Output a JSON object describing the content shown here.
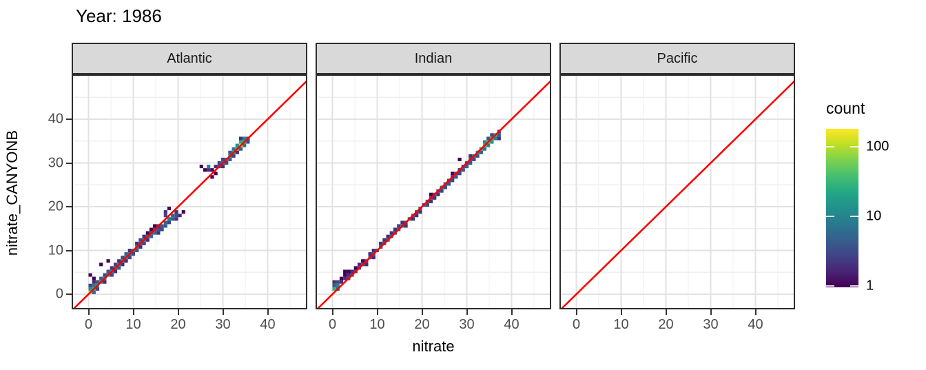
{
  "title": "Year: 1986",
  "axes": {
    "x": {
      "label": "nitrate",
      "tick_values": [
        0,
        10,
        20,
        30,
        40
      ],
      "tick_labels": [
        "0",
        "10",
        "20",
        "30",
        "40"
      ],
      "minor_values": [
        5,
        15,
        25,
        35,
        45
      ],
      "range": [
        -3.5,
        48.9
      ]
    },
    "y": {
      "label": "nitrate_CANYONB",
      "tick_values": [
        0,
        10,
        20,
        30,
        40
      ],
      "tick_labels": [
        "0",
        "10",
        "20",
        "30",
        "40"
      ],
      "minor_values": [
        5,
        15,
        25,
        35,
        45
      ],
      "range": [
        -3.5,
        50.2
      ]
    }
  },
  "legend": {
    "title": "count",
    "scale": "log10",
    "ticks": [
      {
        "value": 100,
        "label": "100"
      },
      {
        "value": 10,
        "label": "10"
      },
      {
        "value": 1,
        "label": "1"
      }
    ],
    "range": [
      1,
      180
    ],
    "gradient_stops": [
      [
        0.0,
        "#440154"
      ],
      [
        0.1,
        "#482475"
      ],
      [
        0.2,
        "#414487"
      ],
      [
        0.3,
        "#355f8d"
      ],
      [
        0.4,
        "#2a788e"
      ],
      [
        0.5,
        "#21918c"
      ],
      [
        0.6,
        "#22a884"
      ],
      [
        0.7,
        "#44bf70"
      ],
      [
        0.8,
        "#7ad151"
      ],
      [
        0.9,
        "#bddf26"
      ],
      [
        1.0,
        "#fde725"
      ]
    ]
  },
  "colors": {
    "identity_line": "#ff0000",
    "strip_fill": "#d9d9d9",
    "panel_border": "#2d2d2d",
    "grid_major": "#e2e2e2",
    "grid_minor": "#efefef",
    "axis_text": "#4d4d4d",
    "tick_mark": "#333333",
    "background": "#ffffff"
  },
  "chart_data": {
    "type": "heatmap",
    "subtype": "geom_bin2d_faceted_scatter",
    "title": "Year: 1986",
    "xlabel": "nitrate",
    "ylabel": "nitrate_CANYONB",
    "xlim": [
      -3.5,
      48.9
    ],
    "ylim": [
      -3.5,
      50.2
    ],
    "grid": true,
    "legend_position": "right",
    "identity_line": {
      "slope": 1,
      "intercept": 0,
      "color": "#ff0000"
    },
    "bin_size": 0.8,
    "count_scale": {
      "type": "log10",
      "legend_ticks": [
        1,
        10,
        100
      ]
    },
    "facets": [
      {
        "name": "Atlantic",
        "bins": [
          [
            0,
            0,
            120
          ],
          [
            0,
            0.8,
            15
          ],
          [
            0,
            1.6,
            3
          ],
          [
            0.8,
            0.8,
            25
          ],
          [
            0.8,
            1.6,
            8
          ],
          [
            0.8,
            0,
            6
          ],
          [
            1.6,
            1.6,
            18
          ],
          [
            1.6,
            2.4,
            4
          ],
          [
            0.8,
            2.4,
            2
          ],
          [
            1.6,
            0.8,
            3
          ],
          [
            0,
            4,
            1
          ],
          [
            0.8,
            3.2,
            1
          ],
          [
            2.4,
            6.4,
            1
          ],
          [
            4,
            7.2,
            1
          ],
          [
            2.4,
            2.4,
            15
          ],
          [
            2.4,
            3.2,
            5
          ],
          [
            3.2,
            3.2,
            12
          ],
          [
            3.2,
            4,
            3
          ],
          [
            3.2,
            2.4,
            2
          ],
          [
            4,
            4,
            14
          ],
          [
            4,
            4.8,
            4
          ],
          [
            4.8,
            4.8,
            12
          ],
          [
            4.8,
            4,
            3
          ],
          [
            4.8,
            5.6,
            2
          ],
          [
            5.6,
            5.6,
            10
          ],
          [
            5.6,
            6.4,
            3
          ],
          [
            5.6,
            4.8,
            2
          ],
          [
            6.4,
            6.4,
            12
          ],
          [
            6.4,
            5.6,
            4
          ],
          [
            6.4,
            7.2,
            2
          ],
          [
            7.2,
            7.2,
            10
          ],
          [
            7.2,
            8,
            3
          ],
          [
            7.2,
            6.4,
            2
          ],
          [
            8,
            8,
            14
          ],
          [
            8,
            7.2,
            2
          ],
          [
            8,
            8.8,
            5
          ],
          [
            8.8,
            8.8,
            10
          ],
          [
            8.8,
            9.6,
            2
          ],
          [
            8.8,
            8,
            3
          ],
          [
            9.6,
            9.6,
            12
          ],
          [
            9.6,
            8.8,
            3
          ],
          [
            10.4,
            10.4,
            10
          ],
          [
            10.4,
            9.6,
            4
          ],
          [
            10.4,
            11.2,
            2
          ],
          [
            11.2,
            11.2,
            8
          ],
          [
            11.2,
            10.4,
            2
          ],
          [
            11.2,
            12,
            3
          ],
          [
            12,
            12,
            10
          ],
          [
            12,
            11.2,
            3
          ],
          [
            12,
            12.8,
            2
          ],
          [
            12.8,
            12.8,
            8
          ],
          [
            12.8,
            12,
            2
          ],
          [
            12.8,
            13.6,
            1
          ],
          [
            13.6,
            12.8,
            6
          ],
          [
            13.6,
            13.6,
            5
          ],
          [
            13.6,
            14.4,
            1
          ],
          [
            14.4,
            13.6,
            6
          ],
          [
            14.4,
            14.4,
            3
          ],
          [
            14.4,
            15.2,
            1
          ],
          [
            15.2,
            14.4,
            4
          ],
          [
            15.2,
            13.6,
            2
          ],
          [
            15.2,
            15.2,
            2
          ],
          [
            16,
            14.4,
            3
          ],
          [
            16,
            15.2,
            5
          ],
          [
            16.8,
            15.2,
            4
          ],
          [
            16.8,
            16,
            6
          ],
          [
            16.8,
            17.6,
            3
          ],
          [
            16.8,
            18.4,
            2
          ],
          [
            17.6,
            16,
            3
          ],
          [
            17.6,
            16.8,
            8
          ],
          [
            17.6,
            19.2,
            1
          ],
          [
            18.4,
            16.8,
            4
          ],
          [
            18.4,
            17.6,
            6
          ],
          [
            19.2,
            17.6,
            4
          ],
          [
            19.2,
            16.8,
            2
          ],
          [
            19.2,
            18.4,
            2
          ],
          [
            20,
            17.6,
            2
          ],
          [
            20.8,
            18.4,
            1
          ],
          [
            24.8,
            28.8,
            1
          ],
          [
            25.6,
            28,
            1
          ],
          [
            26.4,
            28,
            2
          ],
          [
            26.4,
            28.8,
            10
          ],
          [
            27.2,
            28,
            1
          ],
          [
            27.2,
            26.4,
            1
          ],
          [
            28,
            27.2,
            1
          ],
          [
            28,
            28.8,
            2
          ],
          [
            28.8,
            28.8,
            4
          ],
          [
            28.8,
            29.6,
            3
          ],
          [
            29.6,
            29.6,
            8
          ],
          [
            29.6,
            28.8,
            2
          ],
          [
            29.6,
            30.4,
            3
          ],
          [
            30.4,
            30.4,
            10
          ],
          [
            30.4,
            29.6,
            3
          ],
          [
            31.2,
            30.4,
            5
          ],
          [
            31.2,
            31.2,
            15
          ],
          [
            31.2,
            32,
            4
          ],
          [
            32,
            31.2,
            3
          ],
          [
            32,
            32,
            20
          ],
          [
            32,
            32.8,
            8
          ],
          [
            32.8,
            32,
            2
          ],
          [
            32.8,
            32.8,
            30
          ],
          [
            32.8,
            33.6,
            15
          ],
          [
            33.6,
            33.6,
            120
          ],
          [
            33.6,
            32.8,
            5
          ],
          [
            33.6,
            34.4,
            25
          ],
          [
            33.6,
            35.2,
            2
          ],
          [
            34.4,
            34.4,
            30
          ],
          [
            34.4,
            33.6,
            8
          ],
          [
            34.4,
            35.2,
            10
          ],
          [
            35.2,
            34.4,
            4
          ],
          [
            35.2,
            35.2,
            3
          ]
        ]
      },
      {
        "name": "Indian",
        "bins": [
          [
            0,
            0.8,
            30
          ],
          [
            0,
            1.6,
            4
          ],
          [
            0,
            2.4,
            2
          ],
          [
            0.8,
            0.8,
            5
          ],
          [
            0.8,
            1.6,
            10
          ],
          [
            0.8,
            2.4,
            3
          ],
          [
            1.6,
            2.4,
            2
          ],
          [
            1.6,
            3.2,
            1
          ],
          [
            2.4,
            3.2,
            2
          ],
          [
            2.4,
            4,
            1
          ],
          [
            2.4,
            4.8,
            1
          ],
          [
            3.2,
            4,
            2
          ],
          [
            3.2,
            4.8,
            1
          ],
          [
            3.2,
            3.2,
            3
          ],
          [
            4,
            4,
            4
          ],
          [
            4,
            4.8,
            2
          ],
          [
            4.8,
            4.8,
            3
          ],
          [
            4.8,
            5.6,
            1
          ],
          [
            5.6,
            5.6,
            4
          ],
          [
            5.6,
            6.4,
            2
          ],
          [
            6.4,
            6.4,
            5
          ],
          [
            6.4,
            7.2,
            1
          ],
          [
            7.2,
            7.2,
            4
          ],
          [
            7.2,
            6.4,
            2
          ],
          [
            8,
            8,
            5
          ],
          [
            8,
            8.8,
            2
          ],
          [
            8.8,
            8.8,
            4
          ],
          [
            8.8,
            9.6,
            2
          ],
          [
            8.8,
            8,
            2
          ],
          [
            9.6,
            9.6,
            5
          ],
          [
            10.4,
            10.4,
            4
          ],
          [
            10.4,
            11.2,
            2
          ],
          [
            11.2,
            11.2,
            5
          ],
          [
            11.2,
            12,
            2
          ],
          [
            12,
            12,
            6
          ],
          [
            12,
            12.8,
            2
          ],
          [
            12.8,
            12.8,
            5
          ],
          [
            12.8,
            13.6,
            2
          ],
          [
            13.6,
            13.6,
            6
          ],
          [
            13.6,
            14.4,
            2
          ],
          [
            14.4,
            14.4,
            8
          ],
          [
            14.4,
            15.2,
            3
          ],
          [
            15.2,
            15.2,
            8
          ],
          [
            15.2,
            16,
            2
          ],
          [
            16,
            16,
            5
          ],
          [
            16,
            15.2,
            2
          ],
          [
            16.8,
            16.8,
            4
          ],
          [
            17.6,
            17.6,
            5
          ],
          [
            17.6,
            16.8,
            2
          ],
          [
            18.4,
            18.4,
            4
          ],
          [
            18.4,
            17.6,
            2
          ],
          [
            19.2,
            19.2,
            5
          ],
          [
            19.2,
            18.4,
            2
          ],
          [
            20,
            20,
            4
          ],
          [
            20.8,
            20,
            3
          ],
          [
            20.8,
            20.8,
            5
          ],
          [
            21.6,
            20.8,
            2
          ],
          [
            21.6,
            21.6,
            4
          ],
          [
            21.6,
            22.4,
            1
          ],
          [
            22.4,
            21.6,
            2
          ],
          [
            22.4,
            22.4,
            5
          ],
          [
            23.2,
            22.4,
            2
          ],
          [
            23.2,
            23.2,
            4
          ],
          [
            24,
            23.2,
            3
          ],
          [
            24,
            24,
            6
          ],
          [
            24.8,
            24,
            3
          ],
          [
            24.8,
            24.8,
            5
          ],
          [
            25.6,
            24.8,
            4
          ],
          [
            25.6,
            25.6,
            3
          ],
          [
            26.4,
            25.6,
            3
          ],
          [
            26.4,
            26.4,
            2
          ],
          [
            26.4,
            27.2,
            1
          ],
          [
            27.2,
            26.4,
            4
          ],
          [
            27.2,
            27.2,
            3
          ],
          [
            28,
            27.2,
            3
          ],
          [
            28,
            28,
            2
          ],
          [
            28,
            30.4,
            1
          ],
          [
            28.8,
            28,
            4
          ],
          [
            28.8,
            28.8,
            3
          ],
          [
            29.6,
            28.8,
            5
          ],
          [
            29.6,
            29.6,
            3
          ],
          [
            30.4,
            29.6,
            4
          ],
          [
            30.4,
            30.4,
            5
          ],
          [
            30.4,
            31.2,
            2
          ],
          [
            31.2,
            30.4,
            3
          ],
          [
            31.2,
            31.2,
            8
          ],
          [
            32,
            31.2,
            4
          ],
          [
            32,
            32,
            12
          ],
          [
            32.8,
            32,
            5
          ],
          [
            32.8,
            32.8,
            20
          ],
          [
            33.6,
            32.8,
            8
          ],
          [
            33.6,
            33.6,
            40
          ],
          [
            33.6,
            34.4,
            12
          ],
          [
            34.4,
            33.6,
            10
          ],
          [
            34.4,
            34.4,
            45
          ],
          [
            34.4,
            35.2,
            4
          ],
          [
            35.2,
            34.4,
            15
          ],
          [
            35.2,
            35.2,
            35
          ],
          [
            35.2,
            36,
            3
          ],
          [
            36,
            35.2,
            10
          ],
          [
            36,
            36,
            20
          ],
          [
            36.8,
            36,
            5
          ],
          [
            36.8,
            36.8,
            3
          ],
          [
            36.8,
            35.2,
            2
          ]
        ]
      },
      {
        "name": "Pacific",
        "bins": []
      }
    ]
  }
}
